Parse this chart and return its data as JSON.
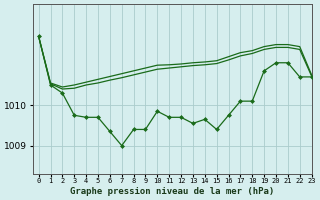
{
  "title": "Graphe pression niveau de la mer (hPa)",
  "bg_color": "#d6eeee",
  "grid_color": "#aacccc",
  "line_color": "#1a6b1a",
  "x_labels": [
    "0",
    "1",
    "2",
    "3",
    "4",
    "5",
    "6",
    "7",
    "8",
    "9",
    "10",
    "11",
    "12",
    "13",
    "14",
    "15",
    "16",
    "17",
    "18",
    "19",
    "20",
    "21",
    "22",
    "23"
  ],
  "xlim": [
    -0.5,
    23
  ],
  "ylim": [
    1008.3,
    1012.5
  ],
  "yticks": [
    1009,
    1010
  ],
  "y_main": [
    1011.7,
    1010.5,
    1010.3,
    1009.75,
    1009.7,
    1009.7,
    1009.35,
    1009.0,
    1009.4,
    1009.4,
    1009.85,
    1009.7,
    1009.7,
    1009.55,
    1009.65,
    1009.4,
    1009.75,
    1010.1,
    1010.1,
    1010.85,
    1011.05,
    1011.05,
    1010.7,
    1010.7
  ],
  "y_upper1": [
    1011.7,
    1010.55,
    1010.45,
    1010.5,
    1010.57,
    1010.64,
    1010.71,
    1010.78,
    1010.85,
    1010.92,
    1010.99,
    1011.0,
    1011.02,
    1011.05,
    1011.07,
    1011.1,
    1011.2,
    1011.3,
    1011.35,
    1011.45,
    1011.5,
    1011.5,
    1011.45,
    1010.75
  ],
  "y_upper2": [
    1011.7,
    1010.53,
    1010.4,
    1010.42,
    1010.5,
    1010.55,
    1010.62,
    1010.68,
    1010.75,
    1010.82,
    1010.89,
    1010.92,
    1010.95,
    1010.98,
    1011.0,
    1011.03,
    1011.12,
    1011.22,
    1011.28,
    1011.38,
    1011.43,
    1011.43,
    1011.38,
    1010.72
  ]
}
